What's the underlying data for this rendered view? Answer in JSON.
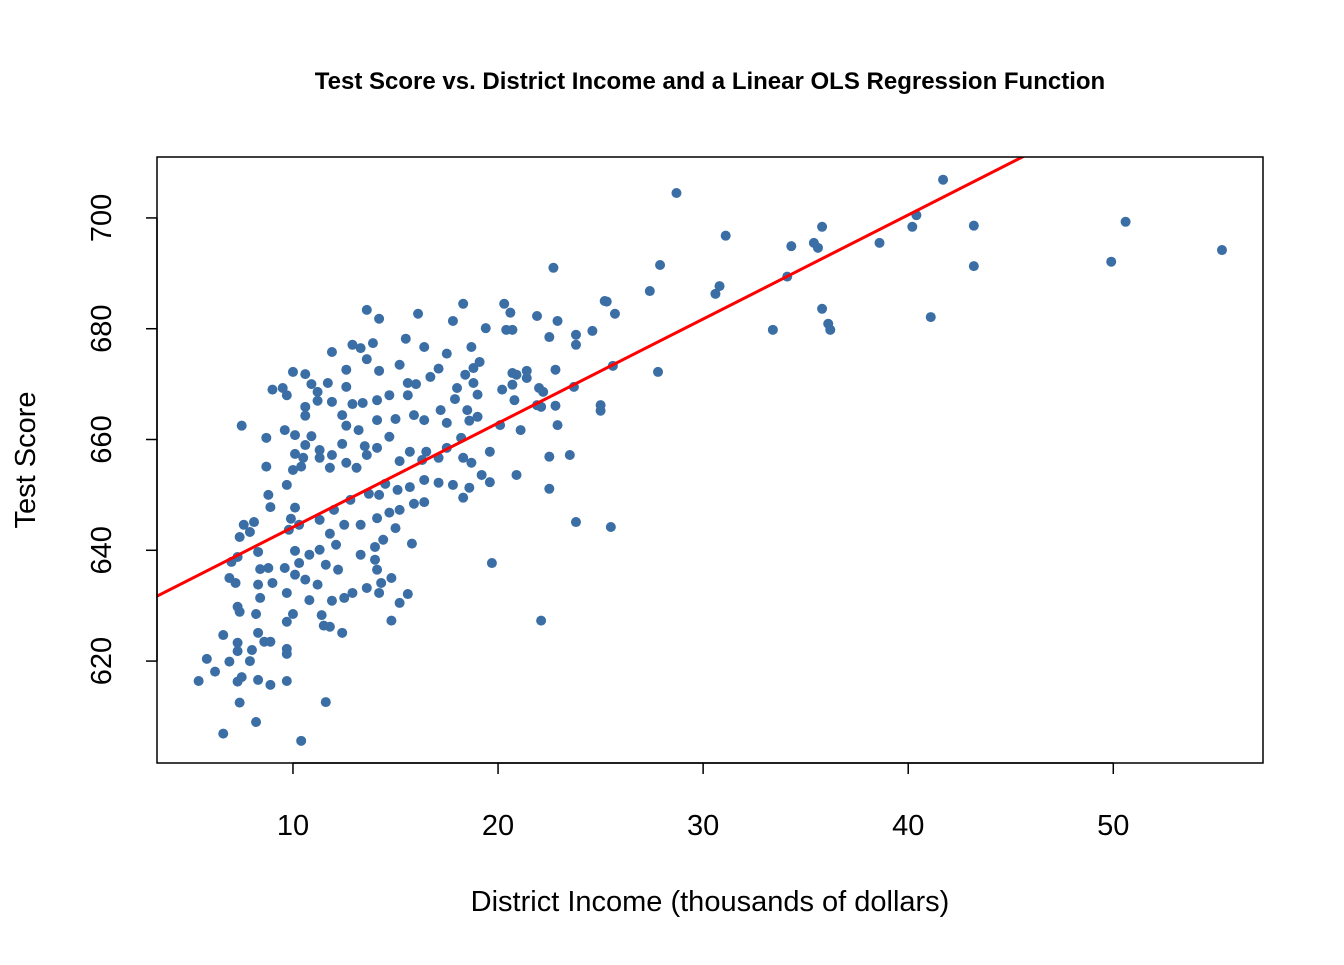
{
  "chart_data": {
    "type": "scatter",
    "title": "Test Score vs. District Income and a Linear OLS Regression Function",
    "xlabel": "District Income (thousands of dollars)",
    "ylabel": "Test Score",
    "xlim": [
      3.37,
      57.3
    ],
    "ylim": [
      601.6,
      711.0
    ],
    "xticks": [
      10,
      20,
      30,
      40,
      50
    ],
    "yticks": [
      620,
      640,
      660,
      680,
      700
    ],
    "grid": false,
    "point_color": "#3a6ea5",
    "line_color": "#ff0000",
    "regression": {
      "intercept": 625.38,
      "slope": 1.879
    },
    "points": [
      [
        55.3,
        694.2
      ],
      [
        50.6,
        699.3
      ],
      [
        49.9,
        692.1
      ],
      [
        41.7,
        706.9
      ],
      [
        40.4,
        700.5
      ],
      [
        40.2,
        698.4
      ],
      [
        43.2,
        698.6
      ],
      [
        43.2,
        691.3
      ],
      [
        41.1,
        682.1
      ],
      [
        38.6,
        695.5
      ],
      [
        35.8,
        698.4
      ],
      [
        35.4,
        695.5
      ],
      [
        35.6,
        694.6
      ],
      [
        34.3,
        694.9
      ],
      [
        34.1,
        689.4
      ],
      [
        35.8,
        683.6
      ],
      [
        36.1,
        680.9
      ],
      [
        36.2,
        679.8
      ],
      [
        33.4,
        679.8
      ],
      [
        31.1,
        696.8
      ],
      [
        30.8,
        687.7
      ],
      [
        30.6,
        686.3
      ],
      [
        28.7,
        704.5
      ],
      [
        27.9,
        691.5
      ],
      [
        27.4,
        686.8
      ],
      [
        27.8,
        672.2
      ],
      [
        25.7,
        682.7
      ],
      [
        25.6,
        673.3
      ],
      [
        25.5,
        644.2
      ],
      [
        25.2,
        685.0
      ],
      [
        25.3,
        684.9
      ],
      [
        24.6,
        679.6
      ],
      [
        25.0,
        666.2
      ],
      [
        25.0,
        665.2
      ],
      [
        23.8,
        678.9
      ],
      [
        23.8,
        677.1
      ],
      [
        23.7,
        669.5
      ],
      [
        23.5,
        657.2
      ],
      [
        23.8,
        645.1
      ],
      [
        22.7,
        691.0
      ],
      [
        22.9,
        681.4
      ],
      [
        21.9,
        682.3
      ],
      [
        22.5,
        678.5
      ],
      [
        22.8,
        672.6
      ],
      [
        22.8,
        666.1
      ],
      [
        22.9,
        662.6
      ],
      [
        22.5,
        656.9
      ],
      [
        22.5,
        651.1
      ],
      [
        22.1,
        627.3
      ],
      [
        22.0,
        669.3
      ],
      [
        22.2,
        668.6
      ],
      [
        21.9,
        666.2
      ],
      [
        22.1,
        665.9
      ],
      [
        20.3,
        684.5
      ],
      [
        20.6,
        682.9
      ],
      [
        20.4,
        679.8
      ],
      [
        20.7,
        679.8
      ],
      [
        19.7,
        637.7
      ],
      [
        20.9,
        653.6
      ],
      [
        21.1,
        661.7
      ],
      [
        20.8,
        667.1
      ],
      [
        20.7,
        672.0
      ],
      [
        20.9,
        671.7
      ],
      [
        21.4,
        672.4
      ],
      [
        21.4,
        671.1
      ],
      [
        20.7,
        669.9
      ],
      [
        20.2,
        669.0
      ],
      [
        20.1,
        662.6
      ],
      [
        19.6,
        652.3
      ],
      [
        19.4,
        680.1
      ],
      [
        18.3,
        684.5
      ],
      [
        17.8,
        681.4
      ],
      [
        16.1,
        682.7
      ],
      [
        13.6,
        683.4
      ],
      [
        14.2,
        681.8
      ],
      [
        16.4,
        676.7
      ],
      [
        17.5,
        675.5
      ],
      [
        18.7,
        676.7
      ],
      [
        19.1,
        674.0
      ],
      [
        18.8,
        672.9
      ],
      [
        18.4,
        671.7
      ],
      [
        18.8,
        670.2
      ],
      [
        18.0,
        669.3
      ],
      [
        15.5,
        678.2
      ],
      [
        13.9,
        677.4
      ],
      [
        12.9,
        677.1
      ],
      [
        13.3,
        676.5
      ],
      [
        11.9,
        675.8
      ],
      [
        13.6,
        674.5
      ],
      [
        12.6,
        672.6
      ],
      [
        14.2,
        672.4
      ],
      [
        15.2,
        673.5
      ],
      [
        15.6,
        670.2
      ],
      [
        10.0,
        672.2
      ],
      [
        10.6,
        671.8
      ],
      [
        10.9,
        670.0
      ],
      [
        9.0,
        669.0
      ],
      [
        9.5,
        669.3
      ],
      [
        9.7,
        668.0
      ],
      [
        11.2,
        668.6
      ],
      [
        11.2,
        667.0
      ],
      [
        11.9,
        666.8
      ],
      [
        10.6,
        665.9
      ],
      [
        7.5,
        662.5
      ],
      [
        9.6,
        661.7
      ],
      [
        10.1,
        660.8
      ],
      [
        8.7,
        660.3
      ],
      [
        8.7,
        655.1
      ],
      [
        8.8,
        650.0
      ],
      [
        8.9,
        647.8
      ],
      [
        7.6,
        644.6
      ],
      [
        7.4,
        642.4
      ],
      [
        7.3,
        638.8
      ],
      [
        7.0,
        637.9
      ],
      [
        6.9,
        635.0
      ],
      [
        7.2,
        634.1
      ],
      [
        7.3,
        629.8
      ],
      [
        7.4,
        628.9
      ],
      [
        6.6,
        624.7
      ],
      [
        5.8,
        620.4
      ],
      [
        5.4,
        616.4
      ],
      [
        6.2,
        618.1
      ],
      [
        6.9,
        619.9
      ],
      [
        7.3,
        623.3
      ],
      [
        7.3,
        621.8
      ],
      [
        7.3,
        616.3
      ],
      [
        7.5,
        617.1
      ],
      [
        7.4,
        612.5
      ],
      [
        6.6,
        606.9
      ],
      [
        8.2,
        609.0
      ],
      [
        10.4,
        605.6
      ],
      [
        11.6,
        612.6
      ],
      [
        7.9,
        620.0
      ],
      [
        8.0,
        622.0
      ],
      [
        8.3,
        616.6
      ],
      [
        8.9,
        615.7
      ],
      [
        9.7,
        616.4
      ],
      [
        9.7,
        622.2
      ],
      [
        9.7,
        621.3
      ],
      [
        8.3,
        625.1
      ],
      [
        8.6,
        623.5
      ],
      [
        8.9,
        623.5
      ],
      [
        8.2,
        628.5
      ],
      [
        8.4,
        631.4
      ],
      [
        8.3,
        633.8
      ],
      [
        9.0,
        634.1
      ],
      [
        8.8,
        636.8
      ],
      [
        8.4,
        636.6
      ],
      [
        8.3,
        639.7
      ],
      [
        9.6,
        636.8
      ],
      [
        9.7,
        632.3
      ],
      [
        9.7,
        627.1
      ],
      [
        10.0,
        628.5
      ],
      [
        10.1,
        635.6
      ],
      [
        10.3,
        637.7
      ],
      [
        10.1,
        639.9
      ],
      [
        9.8,
        643.7
      ],
      [
        9.9,
        645.7
      ],
      [
        10.1,
        647.7
      ],
      [
        9.7,
        651.8
      ],
      [
        10.0,
        654.5
      ],
      [
        10.4,
        655.1
      ],
      [
        10.5,
        656.7
      ],
      [
        10.6,
        659.0
      ],
      [
        10.1,
        657.4
      ],
      [
        10.6,
        664.3
      ],
      [
        11.3,
        656.7
      ],
      [
        11.8,
        654.9
      ],
      [
        12.4,
        659.2
      ],
      [
        12.4,
        664.4
      ],
      [
        12.6,
        662.5
      ],
      [
        13.2,
        661.7
      ],
      [
        13.5,
        658.8
      ],
      [
        14.1,
        663.5
      ],
      [
        15.0,
        663.7
      ],
      [
        15.9,
        664.4
      ],
      [
        16.4,
        663.5
      ],
      [
        17.5,
        663.0
      ],
      [
        18.6,
        663.4
      ],
      [
        18.2,
        660.3
      ],
      [
        17.5,
        658.5
      ],
      [
        16.5,
        657.8
      ],
      [
        15.7,
        657.8
      ],
      [
        15.2,
        656.1
      ],
      [
        16.3,
        656.3
      ],
      [
        17.1,
        656.7
      ],
      [
        18.3,
        656.7
      ],
      [
        17.8,
        651.8
      ],
      [
        17.1,
        652.2
      ],
      [
        16.4,
        652.7
      ],
      [
        15.7,
        651.4
      ],
      [
        15.1,
        650.9
      ],
      [
        14.5,
        652.0
      ],
      [
        14.2,
        650.0
      ],
      [
        13.7,
        650.2
      ],
      [
        12.8,
        649.1
      ],
      [
        12.0,
        647.3
      ],
      [
        11.3,
        645.5
      ],
      [
        11.8,
        643.0
      ],
      [
        12.5,
        644.6
      ],
      [
        13.3,
        644.6
      ],
      [
        14.1,
        645.8
      ],
      [
        14.7,
        646.8
      ],
      [
        15.2,
        647.3
      ],
      [
        15.9,
        648.4
      ],
      [
        16.4,
        648.7
      ],
      [
        15.8,
        641.2
      ],
      [
        15.0,
        644.0
      ],
      [
        14.4,
        641.9
      ],
      [
        14.0,
        640.6
      ],
      [
        13.3,
        639.2
      ],
      [
        12.1,
        641.0
      ],
      [
        11.3,
        640.1
      ],
      [
        10.8,
        639.2
      ],
      [
        11.6,
        637.4
      ],
      [
        12.2,
        636.5
      ],
      [
        14.0,
        638.3
      ],
      [
        14.8,
        635.0
      ],
      [
        14.3,
        634.1
      ],
      [
        13.6,
        633.2
      ],
      [
        12.9,
        632.3
      ],
      [
        12.5,
        631.4
      ],
      [
        11.9,
        630.9
      ],
      [
        11.2,
        633.8
      ],
      [
        10.6,
        634.7
      ],
      [
        10.8,
        631.0
      ],
      [
        11.4,
        628.3
      ],
      [
        11.5,
        626.4
      ],
      [
        11.8,
        626.2
      ],
      [
        12.4,
        625.1
      ],
      [
        14.8,
        627.3
      ],
      [
        15.6,
        632.1
      ],
      [
        15.2,
        630.5
      ],
      [
        14.2,
        632.3
      ],
      [
        14.1,
        636.5
      ],
      [
        7.9,
        643.3
      ],
      [
        8.1,
        645.1
      ],
      [
        10.3,
        644.6
      ],
      [
        17.1,
        672.8
      ],
      [
        16.7,
        671.3
      ],
      [
        17.9,
        667.3
      ],
      [
        17.2,
        665.3
      ],
      [
        18.5,
        665.3
      ],
      [
        19.0,
        668.1
      ],
      [
        19.0,
        664.1
      ],
      [
        19.6,
        657.8
      ],
      [
        19.2,
        653.6
      ],
      [
        18.7,
        655.8
      ],
      [
        18.3,
        649.5
      ],
      [
        18.6,
        651.3
      ],
      [
        16.0,
        670.0
      ],
      [
        15.6,
        668.0
      ],
      [
        14.7,
        668.0
      ],
      [
        14.1,
        667.1
      ],
      [
        14.7,
        660.5
      ],
      [
        14.1,
        658.5
      ],
      [
        13.6,
        657.2
      ],
      [
        13.1,
        654.9
      ],
      [
        12.6,
        655.8
      ],
      [
        11.9,
        657.2
      ],
      [
        11.3,
        658.1
      ],
      [
        10.9,
        660.6
      ],
      [
        11.7,
        670.2
      ],
      [
        12.6,
        669.5
      ],
      [
        12.9,
        666.4
      ],
      [
        13.4,
        666.6
      ]
    ]
  }
}
